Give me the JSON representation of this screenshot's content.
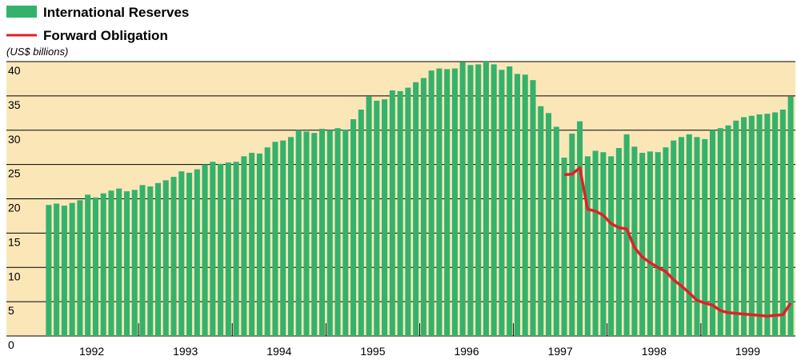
{
  "chart_data": {
    "type": "bar_line",
    "unit_label": "(US$ billions)",
    "x_labels": [
      "1992",
      "1993",
      "1994",
      "1995",
      "1996",
      "1997",
      "1998",
      "1999"
    ],
    "ylim": [
      0,
      40
    ],
    "yticks": [
      0,
      5,
      10,
      15,
      20,
      25,
      30,
      35,
      40
    ],
    "grid": true,
    "series": [
      {
        "name": "International Reserves",
        "type": "bar",
        "color": "#34b26c",
        "values": [
          19.1,
          19.3,
          19.0,
          19.4,
          19.8,
          20.6,
          20.2,
          20.8,
          21.2,
          21.5,
          21.1,
          21.3,
          22.0,
          21.8,
          22.3,
          22.7,
          23.2,
          24.0,
          23.8,
          24.3,
          25.0,
          25.4,
          25.1,
          25.3,
          25.4,
          26.2,
          26.7,
          26.6,
          27.5,
          28.3,
          28.5,
          29.0,
          30.0,
          29.8,
          29.6,
          30.2,
          30.0,
          30.3,
          30.1,
          31.6,
          33.0,
          34.9,
          34.3,
          34.5,
          35.8,
          35.7,
          36.2,
          37.0,
          37.6,
          38.7,
          39.0,
          38.9,
          39.0,
          39.9,
          39.5,
          39.6,
          40.0,
          39.6,
          38.8,
          39.3,
          38.2,
          38.1,
          37.3,
          33.5,
          32.5,
          30.5,
          26.0,
          29.5,
          31.3,
          26.2,
          27.0,
          26.8,
          26.2,
          27.4,
          29.4,
          27.6,
          26.7,
          26.9,
          26.8,
          27.5,
          28.5,
          29.0,
          29.4,
          29.0,
          28.7,
          30.0,
          30.3,
          30.7,
          31.4,
          31.9,
          32.1,
          32.3,
          32.4,
          32.6,
          33.0,
          34.9
        ]
      },
      {
        "name": "Forward Obligation",
        "type": "line",
        "color": "#e0202a",
        "values": [
          null,
          null,
          null,
          null,
          null,
          null,
          null,
          null,
          null,
          null,
          null,
          null,
          null,
          null,
          null,
          null,
          null,
          null,
          null,
          null,
          null,
          null,
          null,
          null,
          null,
          null,
          null,
          null,
          null,
          null,
          null,
          null,
          null,
          null,
          null,
          null,
          null,
          null,
          null,
          null,
          null,
          null,
          null,
          null,
          null,
          null,
          null,
          null,
          null,
          null,
          null,
          null,
          null,
          null,
          null,
          null,
          null,
          null,
          null,
          null,
          null,
          null,
          null,
          null,
          null,
          null,
          23.5,
          23.6,
          24.5,
          18.5,
          18.2,
          17.6,
          16.4,
          15.8,
          15.6,
          12.9,
          11.5,
          10.7,
          10.0,
          9.4,
          8.2,
          7.3,
          6.3,
          5.2,
          4.8,
          4.5,
          3.7,
          3.4,
          3.3,
          3.2,
          3.1,
          3.0,
          2.9,
          3.0,
          3.1,
          4.8
        ]
      }
    ]
  }
}
